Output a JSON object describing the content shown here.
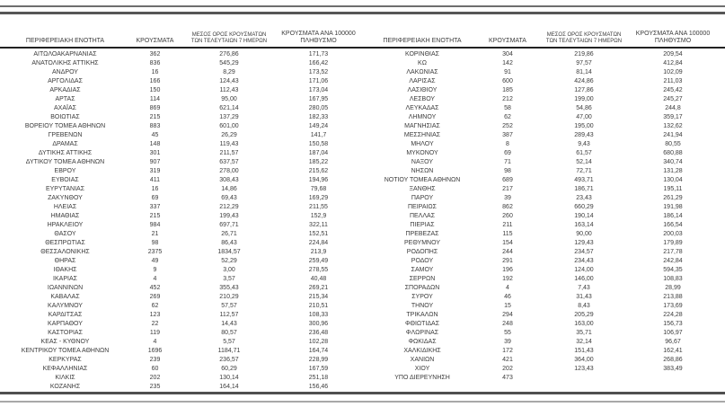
{
  "colors": {
    "text": "#3b3b3b",
    "rule_dark": "#565656",
    "rule_light": "#a8a8a8",
    "header_rule": "#222222",
    "background": "#ffffff"
  },
  "table": {
    "headers": {
      "region": "ΠΕΡΙΦΕΡΕΙΑΚΗ ΕΝΟΤΗΤΑ",
      "cases": "ΚΡΟΥΣΜΑΤΑ",
      "avg7_line1": "ΜΕΣΟΣ ΟΡΟΣ ΚΡΟΥΣΜΑΤΩΝ",
      "avg7_line2": "ΤΩΝ ΤΕΛΕΥΤΑΙΩΝ 7 ΗΜΕΡΩΝ",
      "per100k_line1": "ΚΡΟΥΣΜΑΤΑ ΑΝΑ 100000",
      "per100k_line2": "ΠΛΗΘΥΣΜΟ"
    },
    "left_rows": [
      [
        "ΑΙΤΩΛΟΑΚΑΡΝΑΝΙΑΣ",
        "362",
        "276,86",
        "171,73"
      ],
      [
        "ΑΝΑΤΟΛΙΚΗΣ ΑΤΤΙΚΗΣ",
        "836",
        "545,29",
        "166,42"
      ],
      [
        "ΑΝΔΡΟΥ",
        "16",
        "8,29",
        "173,52"
      ],
      [
        "ΑΡΓΟΛΙΔΑΣ",
        "166",
        "124,43",
        "171,06"
      ],
      [
        "ΑΡΚΑΔΙΑΣ",
        "150",
        "112,43",
        "173,04"
      ],
      [
        "ΑΡΤΑΣ",
        "114",
        "95,00",
        "167,95"
      ],
      [
        "ΑΧΑΪΑΣ",
        "869",
        "621,14",
        "280,05"
      ],
      [
        "ΒΟΙΩΤΙΑΣ",
        "215",
        "137,29",
        "182,33"
      ],
      [
        "ΒΟΡΕΙΟΥ ΤΟΜΕΑ ΑΘΗΝΩΝ",
        "883",
        "601,00",
        "149,24"
      ],
      [
        "ΓΡΕΒΕΝΩΝ",
        "45",
        "26,29",
        "141,7"
      ],
      [
        "ΔΡΑΜΑΣ",
        "148",
        "119,43",
        "150,58"
      ],
      [
        "ΔΥΤΙΚΗΣ ΑΤΤΙΚΗΣ",
        "301",
        "211,57",
        "187,04"
      ],
      [
        "ΔΥΤΙΚΟΥ ΤΟΜΕΑ ΑΘΗΝΩΝ",
        "907",
        "637,57",
        "185,22"
      ],
      [
        "ΕΒΡΟΥ",
        "319",
        "278,00",
        "215,62"
      ],
      [
        "ΕΥΒΟΙΑΣ",
        "411",
        "308,43",
        "194,96"
      ],
      [
        "ΕΥΡΥΤΑΝΙΑΣ",
        "16",
        "14,86",
        "79,68"
      ],
      [
        "ΖΑΚΥΝΘΟΥ",
        "69",
        "69,43",
        "169,29"
      ],
      [
        "ΗΛΕΙΑΣ",
        "337",
        "212,29",
        "211,55"
      ],
      [
        "ΗΜΑΘΙΑΣ",
        "215",
        "199,43",
        "152,9"
      ],
      [
        "ΗΡΑΚΛΕΙΟΥ",
        "984",
        "697,71",
        "322,11"
      ],
      [
        "ΘΑΣΟΥ",
        "21",
        "26,71",
        "152,51"
      ],
      [
        "ΘΕΣΠΡΩΤΙΑΣ",
        "98",
        "86,43",
        "224,84"
      ],
      [
        "ΘΕΣΣΑΛΟΝΙΚΗΣ",
        "2375",
        "1834,57",
        "213,9"
      ],
      [
        "ΘΗΡΑΣ",
        "49",
        "52,29",
        "259,49"
      ],
      [
        "ΙΘΑΚΗΣ",
        "9",
        "3,00",
        "278,55"
      ],
      [
        "ΙΚΑΡΙΑΣ",
        "4",
        "3,57",
        "40,48"
      ],
      [
        "ΙΩΑΝΝΙΝΩΝ",
        "452",
        "355,43",
        "269,21"
      ],
      [
        "ΚΑΒΑΛΑΣ",
        "269",
        "210,29",
        "215,34"
      ],
      [
        "ΚΑΛΥΜΝΟΥ",
        "62",
        "57,57",
        "210,51"
      ],
      [
        "ΚΑΡΔΙΤΣΑΣ",
        "123",
        "112,57",
        "108,33"
      ],
      [
        "ΚΑΡΠΑΘΟΥ",
        "22",
        "14,43",
        "300,96"
      ],
      [
        "ΚΑΣΤΟΡΙΑΣ",
        "119",
        "80,57",
        "236,48"
      ],
      [
        "ΚΕΑΣ - ΚΥΘΝΟΥ",
        "4",
        "5,57",
        "102,28"
      ],
      [
        "ΚΕΝΤΡΙΚΟΥ ΤΟΜΕΑ ΑΘΗΝΩΝ",
        "1696",
        "1184,71",
        "164,74"
      ],
      [
        "ΚΕΡΚΥΡΑΣ",
        "239",
        "236,57",
        "228,99"
      ],
      [
        "ΚΕΦΑΛΛΗΝΙΑΣ",
        "60",
        "60,29",
        "167,59"
      ],
      [
        "ΚΙΛΚΙΣ",
        "202",
        "130,14",
        "251,18"
      ],
      [
        "ΚΟΖΑΝΗΣ",
        "235",
        "164,14",
        "156,46"
      ]
    ],
    "right_rows": [
      [
        "ΚΟΡΙΝΘΙΑΣ",
        "304",
        "219,86",
        "209,54"
      ],
      [
        "ΚΩ",
        "142",
        "97,57",
        "412,84"
      ],
      [
        "ΛΑΚΩΝΙΑΣ",
        "91",
        "81,14",
        "102,09"
      ],
      [
        "ΛΑΡΙΣΑΣ",
        "600",
        "424,86",
        "211,03"
      ],
      [
        "ΛΑΣΙΘΙΟΥ",
        "185",
        "127,86",
        "245,42"
      ],
      [
        "ΛΕΣΒΟΥ",
        "212",
        "199,00",
        "245,27"
      ],
      [
        "ΛΕΥΚΑΔΑΣ",
        "58",
        "54,86",
        "244,8"
      ],
      [
        "ΛΗΜΝΟΥ",
        "62",
        "47,00",
        "359,17"
      ],
      [
        "ΜΑΓΝΗΣΙΑΣ",
        "252",
        "195,00",
        "132,62"
      ],
      [
        "ΜΕΣΣΗΝΙΑΣ",
        "387",
        "289,43",
        "241,94"
      ],
      [
        "ΜΗΛΟΥ",
        "8",
        "9,43",
        "80,55"
      ],
      [
        "ΜΥΚΟΝΟΥ",
        "69",
        "61,57",
        "680,88"
      ],
      [
        "ΝΑΞΟΥ",
        "71",
        "52,14",
        "340,74"
      ],
      [
        "ΝΗΣΩΝ",
        "98",
        "72,71",
        "131,28"
      ],
      [
        "ΝΟΤΙΟΥ ΤΟΜΕΑ ΑΘΗΝΩΝ",
        "689",
        "493,71",
        "130,04"
      ],
      [
        "ΞΑΝΘΗΣ",
        "217",
        "186,71",
        "195,11"
      ],
      [
        "ΠΑΡΟΥ",
        "39",
        "23,43",
        "261,29"
      ],
      [
        "ΠΕΙΡΑΙΩΣ",
        "862",
        "660,29",
        "191,98"
      ],
      [
        "ΠΕΛΛΑΣ",
        "260",
        "190,14",
        "186,14"
      ],
      [
        "ΠΙΕΡΙΑΣ",
        "211",
        "163,14",
        "166,54"
      ],
      [
        "ΠΡΕΒΕΖΑΣ",
        "115",
        "90,00",
        "200,03"
      ],
      [
        "ΡΕΘΥΜΝΟΥ",
        "154",
        "129,43",
        "179,89"
      ],
      [
        "ΡΟΔΟΠΗΣ",
        "244",
        "234,57",
        "217,78"
      ],
      [
        "ΡΟΔΟΥ",
        "291",
        "234,43",
        "242,84"
      ],
      [
        "ΣΑΜΟΥ",
        "196",
        "124,00",
        "594,35"
      ],
      [
        "ΣΕΡΡΩΝ",
        "192",
        "146,00",
        "108,83"
      ],
      [
        "ΣΠΟΡΑΔΩΝ",
        "4",
        "7,43",
        "28,99"
      ],
      [
        "ΣΥΡΟΥ",
        "46",
        "31,43",
        "213,88"
      ],
      [
        "ΤΗΝΟΥ",
        "15",
        "8,43",
        "173,69"
      ],
      [
        "ΤΡΙΚΑΛΩΝ",
        "294",
        "205,29",
        "224,28"
      ],
      [
        "ΦΘΙΩΤΙΔΑΣ",
        "248",
        "163,00",
        "156,73"
      ],
      [
        "ΦΛΩΡΙΝΑΣ",
        "55",
        "35,71",
        "106,97"
      ],
      [
        "ΦΩΚΙΔΑΣ",
        "39",
        "32,14",
        "96,67"
      ],
      [
        "ΧΑΛΚΙΔΙΚΗΣ",
        "172",
        "151,43",
        "162,41"
      ],
      [
        "ΧΑΝΙΩΝ",
        "421",
        "364,00",
        "268,86"
      ],
      [
        "ΧΙΟΥ",
        "202",
        "123,43",
        "383,49"
      ],
      [
        "ΥΠΟ ΔΙΕΡΕΥΝΗΣΗ",
        "473",
        "",
        ""
      ]
    ]
  }
}
